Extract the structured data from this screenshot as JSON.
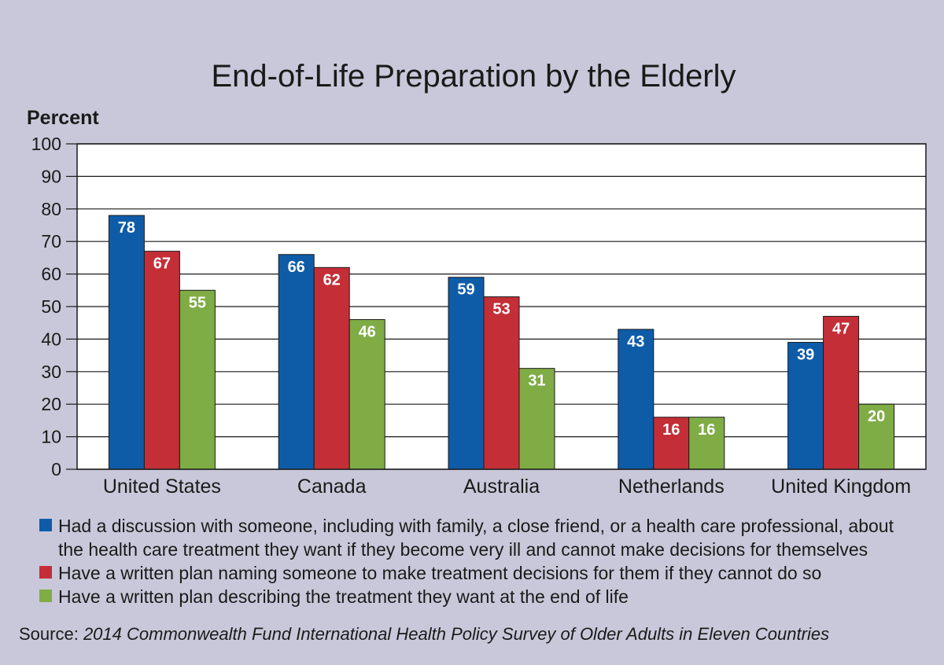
{
  "chart_data": {
    "type": "bar",
    "title": "End-of-Life Preparation by the Elderly",
    "ylabel": "Percent",
    "ylim": [
      0,
      100
    ],
    "yticks": [
      0,
      10,
      20,
      30,
      40,
      50,
      60,
      70,
      80,
      90,
      100
    ],
    "grid": true,
    "categories": [
      "United States",
      "Canada",
      "Australia",
      "Netherlands",
      "United Kingdom"
    ],
    "series": [
      {
        "name": "Had a discussion with someone, including with family, a close friend, or a health care professional, about the health care treatment they want if they become very ill and cannot make decisions for themselves",
        "color": "#0e5ca8",
        "values": [
          78,
          66,
          59,
          43,
          39
        ]
      },
      {
        "name": "Have a written plan naming someone to make treatment decisions for them if they cannot do so",
        "color": "#c42e37",
        "values": [
          67,
          62,
          53,
          16,
          47
        ]
      },
      {
        "name": "Have a written plan describing the treatment they want at the end of life",
        "color": "#7fac45",
        "values": [
          55,
          46,
          31,
          16,
          20
        ]
      }
    ],
    "legend_position": "bottom",
    "source_label": "Source: ",
    "source_text": "2014 Commonwealth Fund International Health Policy Survey of Older Adults in Eleven Countries"
  }
}
